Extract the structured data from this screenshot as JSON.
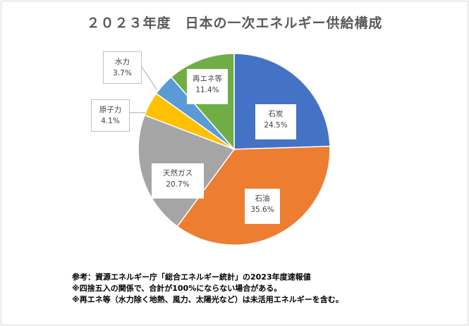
{
  "chart_data": {
    "type": "pie",
    "title": "２０２３年度　日本の一次エネルギー供給構成",
    "categories": [
      "石炭",
      "石油",
      "天然ガス",
      "原子力",
      "水力",
      "再エネ等"
    ],
    "values": [
      24.5,
      35.6,
      20.7,
      4.1,
      3.7,
      11.4
    ],
    "value_labels": [
      "24.5%",
      "35.6%",
      "20.7%",
      "4.1%",
      "3.7%",
      "11.4%"
    ],
    "colors": [
      "#4472c4",
      "#ed7d31",
      "#a5a5a5",
      "#ffc000",
      "#5b9bd5",
      "#70ad47"
    ],
    "start_angle_deg": 0,
    "direction": "clockwise"
  },
  "notes": [
    "参考：資源エネルギー庁「総合エネルギー統計」の2023年度速報値",
    "※四捨五入の関係で、合計が100%にならない場合がある。",
    "※再エネ等（水力除く地熱、風力、太陽光など）は未活用エネルギーを含む。"
  ]
}
